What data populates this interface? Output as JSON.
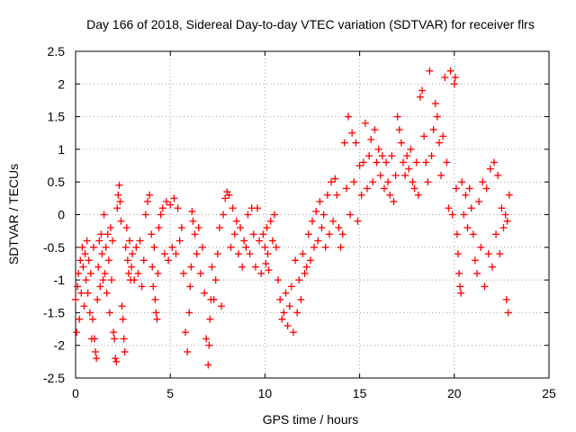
{
  "chart_data": {
    "type": "scatter",
    "title": "Day 166 of 2018, Sidereal Day-to-day VTEC variation (SDTVAR) for receiver flrs",
    "xlabel": "GPS time / hours",
    "ylabel": "SDTVAR / TECUs",
    "xlim": [
      0,
      25
    ],
    "ylim": [
      -2.5,
      2.5
    ],
    "xticks": [
      "0",
      "5",
      "10",
      "15",
      "20",
      "25"
    ],
    "yticks": [
      "2.5",
      "2",
      "1.5",
      "1",
      "0.5",
      "0",
      "-0.5",
      "-1",
      "-1.5",
      "-2",
      "-2.5"
    ],
    "grid": true,
    "marker": "+",
    "series": [
      {
        "name": "SDTVAR",
        "color": "#ff0000",
        "points": [
          [
            0.0,
            -1.3
          ],
          [
            0.05,
            -1.8
          ],
          [
            0.1,
            -1.1
          ],
          [
            0.15,
            -0.9
          ],
          [
            0.2,
            -1.6
          ],
          [
            0.25,
            -0.7
          ],
          [
            0.3,
            -1.2
          ],
          [
            0.35,
            -0.5
          ],
          [
            0.4,
            -0.8
          ],
          [
            0.45,
            -1.4
          ],
          [
            0.5,
            -0.6
          ],
          [
            0.55,
            -1.0
          ],
          [
            0.6,
            -0.4
          ],
          [
            0.65,
            -1.2
          ],
          [
            0.7,
            -0.7
          ],
          [
            0.75,
            -1.5
          ],
          [
            0.8,
            -0.9
          ],
          [
            0.85,
            -1.9
          ],
          [
            0.9,
            -1.6
          ],
          [
            0.95,
            -0.5
          ],
          [
            1.0,
            -1.9
          ],
          [
            1.05,
            -2.1
          ],
          [
            1.1,
            -2.2
          ],
          [
            1.15,
            -1.3
          ],
          [
            1.2,
            -0.8
          ],
          [
            1.25,
            -0.4
          ],
          [
            1.3,
            -1.1
          ],
          [
            1.35,
            -0.3
          ],
          [
            1.4,
            -0.6
          ],
          [
            1.45,
            -1.0
          ],
          [
            1.5,
            0.0
          ],
          [
            1.55,
            -0.9
          ],
          [
            1.6,
            -0.5
          ],
          [
            1.65,
            -1.2
          ],
          [
            1.7,
            -0.3
          ],
          [
            1.75,
            -0.7
          ],
          [
            1.8,
            -1.5
          ],
          [
            1.85,
            -0.2
          ],
          [
            1.9,
            -1.0
          ],
          [
            1.95,
            -0.4
          ],
          [
            2.0,
            -1.8
          ],
          [
            2.05,
            -1.9
          ],
          [
            2.1,
            -2.2
          ],
          [
            2.15,
            -2.25
          ],
          [
            2.2,
            0.1
          ],
          [
            2.25,
            0.3
          ],
          [
            2.3,
            0.45
          ],
          [
            2.35,
            0.2
          ],
          [
            2.4,
            -0.1
          ],
          [
            2.45,
            -1.4
          ],
          [
            2.5,
            -1.6
          ],
          [
            2.55,
            -1.9
          ],
          [
            2.6,
            -2.1
          ],
          [
            2.65,
            -0.5
          ],
          [
            2.7,
            -0.2
          ],
          [
            2.75,
            -0.7
          ],
          [
            2.8,
            -0.9
          ],
          [
            2.85,
            -0.4
          ],
          [
            2.9,
            -1.0
          ],
          [
            2.95,
            -0.8
          ],
          [
            3.0,
            -0.6
          ],
          [
            3.1,
            -1.0
          ],
          [
            3.2,
            -0.5
          ],
          [
            3.3,
            -0.9
          ],
          [
            3.4,
            -0.4
          ],
          [
            3.5,
            -1.1
          ],
          [
            3.6,
            -0.7
          ],
          [
            3.7,
            0.0
          ],
          [
            3.8,
            0.2
          ],
          [
            3.9,
            0.3
          ],
          [
            4.0,
            -0.3
          ],
          [
            4.05,
            -0.8
          ],
          [
            4.1,
            -1.1
          ],
          [
            4.15,
            -0.5
          ],
          [
            4.2,
            -1.3
          ],
          [
            4.25,
            -1.5
          ],
          [
            4.3,
            -1.6
          ],
          [
            4.35,
            -0.9
          ],
          [
            4.4,
            -0.2
          ],
          [
            4.5,
            0.0
          ],
          [
            4.6,
            0.1
          ],
          [
            4.7,
            -0.6
          ],
          [
            4.8,
            0.2
          ],
          [
            4.9,
            -0.7
          ],
          [
            5.0,
            0.15
          ],
          [
            5.1,
            -0.5
          ],
          [
            5.2,
            0.25
          ],
          [
            5.3,
            -0.6
          ],
          [
            5.4,
            0.1
          ],
          [
            5.5,
            -0.4
          ],
          [
            5.6,
            -0.2
          ],
          [
            5.7,
            -0.9
          ],
          [
            5.8,
            -1.8
          ],
          [
            5.9,
            -2.1
          ],
          [
            6.0,
            -1.5
          ],
          [
            6.05,
            -1.1
          ],
          [
            6.1,
            -0.8
          ],
          [
            6.15,
            0.05
          ],
          [
            6.2,
            -0.1
          ],
          [
            6.3,
            -0.3
          ],
          [
            6.4,
            -0.6
          ],
          [
            6.5,
            -0.2
          ],
          [
            6.6,
            -0.9
          ],
          [
            6.7,
            -0.5
          ],
          [
            6.8,
            -1.2
          ],
          [
            6.9,
            -1.9
          ],
          [
            7.0,
            -2.3
          ],
          [
            7.05,
            -2.0
          ],
          [
            7.1,
            -1.6
          ],
          [
            7.15,
            -1.3
          ],
          [
            7.2,
            -0.8
          ],
          [
            7.3,
            -1.3
          ],
          [
            7.4,
            -1.0
          ],
          [
            7.5,
            -0.6
          ],
          [
            7.6,
            -0.2
          ],
          [
            7.7,
            -1.4
          ],
          [
            7.8,
            0.0
          ],
          [
            7.9,
            0.25
          ],
          [
            8.0,
            0.35
          ],
          [
            8.1,
            0.3
          ],
          [
            8.2,
            -0.5
          ],
          [
            8.3,
            0.1
          ],
          [
            8.4,
            -0.3
          ],
          [
            8.5,
            -0.1
          ],
          [
            8.6,
            -0.6
          ],
          [
            8.7,
            -0.2
          ],
          [
            8.8,
            -0.8
          ],
          [
            8.9,
            -0.4
          ],
          [
            9.0,
            -0.5
          ],
          [
            9.1,
            0.0
          ],
          [
            9.2,
            -0.6
          ],
          [
            9.3,
            0.1
          ],
          [
            9.4,
            -0.3
          ],
          [
            9.5,
            -0.8
          ],
          [
            9.6,
            0.1
          ],
          [
            9.7,
            -0.4
          ],
          [
            9.8,
            -0.9
          ],
          [
            9.9,
            -0.3
          ],
          [
            10.0,
            -0.5
          ],
          [
            10.05,
            -0.75
          ],
          [
            10.1,
            -0.2
          ],
          [
            10.15,
            -0.6
          ],
          [
            10.2,
            -0.85
          ],
          [
            10.3,
            -0.1
          ],
          [
            10.4,
            -0.4
          ],
          [
            10.5,
            0.0
          ],
          [
            10.6,
            -0.5
          ],
          [
            10.7,
            -1.0
          ],
          [
            10.8,
            -1.3
          ],
          [
            10.9,
            -1.6
          ],
          [
            11.0,
            -1.5
          ],
          [
            11.1,
            -1.2
          ],
          [
            11.2,
            -1.7
          ],
          [
            11.3,
            -1.4
          ],
          [
            11.4,
            -1.1
          ],
          [
            11.5,
            -1.8
          ],
          [
            11.6,
            -0.7
          ],
          [
            11.7,
            -1.5
          ],
          [
            11.8,
            -1.0
          ],
          [
            11.9,
            -1.3
          ],
          [
            12.0,
            -0.6
          ],
          [
            12.1,
            -0.9
          ],
          [
            12.2,
            -0.8
          ],
          [
            12.3,
            -0.3
          ],
          [
            12.4,
            -0.7
          ],
          [
            12.5,
            -0.1
          ],
          [
            12.6,
            -0.5
          ],
          [
            12.7,
            0.05
          ],
          [
            12.8,
            -0.4
          ],
          [
            12.9,
            0.2
          ],
          [
            13.0,
            -0.2
          ],
          [
            13.1,
            0.0
          ],
          [
            13.2,
            -0.5
          ],
          [
            13.3,
            0.3
          ],
          [
            13.4,
            -0.3
          ],
          [
            13.5,
            0.5
          ],
          [
            13.6,
            -0.1
          ],
          [
            13.7,
            0.55
          ],
          [
            13.8,
            0.3
          ],
          [
            13.9,
            -0.2
          ],
          [
            14.0,
            -0.5
          ],
          [
            14.1,
            -0.3
          ],
          [
            14.2,
            1.1
          ],
          [
            14.3,
            0.4
          ],
          [
            14.4,
            1.5
          ],
          [
            14.5,
            0.0
          ],
          [
            14.6,
            1.25
          ],
          [
            14.7,
            0.5
          ],
          [
            14.8,
            1.1
          ],
          [
            14.9,
            -0.1
          ],
          [
            15.0,
            0.75
          ],
          [
            15.1,
            0.3
          ],
          [
            15.2,
            0.8
          ],
          [
            15.3,
            1.4
          ],
          [
            15.4,
            0.4
          ],
          [
            15.5,
            0.9
          ],
          [
            15.6,
            1.15
          ],
          [
            15.7,
            0.5
          ],
          [
            15.8,
            1.3
          ],
          [
            15.9,
            0.8
          ],
          [
            16.0,
            1.0
          ],
          [
            16.1,
            0.6
          ],
          [
            16.2,
            0.9
          ],
          [
            16.3,
            0.4
          ],
          [
            16.4,
            0.8
          ],
          [
            16.5,
            0.5
          ],
          [
            16.6,
            0.3
          ],
          [
            16.7,
            0.9
          ],
          [
            16.8,
            0.2
          ],
          [
            16.9,
            0.6
          ],
          [
            17.0,
            1.5
          ],
          [
            17.1,
            1.3
          ],
          [
            17.2,
            1.1
          ],
          [
            17.3,
            0.8
          ],
          [
            17.4,
            0.6
          ],
          [
            17.5,
            0.9
          ],
          [
            17.6,
            0.7
          ],
          [
            17.7,
            1.0
          ],
          [
            17.8,
            0.5
          ],
          [
            17.9,
            0.4
          ],
          [
            18.0,
            0.8
          ],
          [
            18.1,
            0.3
          ],
          [
            18.2,
            1.8
          ],
          [
            18.3,
            1.9
          ],
          [
            18.4,
            1.2
          ],
          [
            18.5,
            0.8
          ],
          [
            18.6,
            0.5
          ],
          [
            18.7,
            2.2
          ],
          [
            18.8,
            0.9
          ],
          [
            18.9,
            1.3
          ],
          [
            19.0,
            1.7
          ],
          [
            19.1,
            1.5
          ],
          [
            19.2,
            1.1
          ],
          [
            19.3,
            0.6
          ],
          [
            19.4,
            1.2
          ],
          [
            19.5,
            2.1
          ],
          [
            19.6,
            0.8
          ],
          [
            19.7,
            0.1
          ],
          [
            19.8,
            2.2
          ],
          [
            19.9,
            0.0
          ],
          [
            20.0,
            2.0
          ],
          [
            20.05,
            2.1
          ],
          [
            20.1,
            0.4
          ],
          [
            20.15,
            -0.3
          ],
          [
            20.2,
            -0.6
          ],
          [
            20.25,
            -0.9
          ],
          [
            20.3,
            -1.1
          ],
          [
            20.35,
            -1.2
          ],
          [
            20.4,
            0.5
          ],
          [
            20.5,
            0.0
          ],
          [
            20.6,
            0.3
          ],
          [
            20.7,
            -0.2
          ],
          [
            20.8,
            0.4
          ],
          [
            20.9,
            0.1
          ],
          [
            21.0,
            -0.3
          ],
          [
            21.1,
            -0.7
          ],
          [
            21.2,
            -0.9
          ],
          [
            21.3,
            0.2
          ],
          [
            21.4,
            -0.5
          ],
          [
            21.5,
            0.5
          ],
          [
            21.6,
            -1.1
          ],
          [
            21.7,
            0.4
          ],
          [
            21.8,
            -0.6
          ],
          [
            21.9,
            0.7
          ],
          [
            22.0,
            -0.8
          ],
          [
            22.1,
            0.8
          ],
          [
            22.2,
            -0.3
          ],
          [
            22.3,
            0.6
          ],
          [
            22.4,
            -0.6
          ],
          [
            22.5,
            0.1
          ],
          [
            22.6,
            -0.2
          ],
          [
            22.7,
            0.0
          ],
          [
            22.75,
            -1.3
          ],
          [
            22.8,
            -0.1
          ],
          [
            22.85,
            -1.5
          ],
          [
            22.9,
            0.3
          ]
        ]
      }
    ]
  }
}
